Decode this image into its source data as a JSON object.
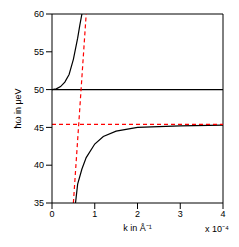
{
  "chart_data": {
    "type": "line",
    "xlabel": "k in Å⁻¹",
    "ylabel": "ħω in μeV",
    "annotation": "x 10⁻⁴",
    "xlim": [
      0,
      4
    ],
    "xticks": [
      0,
      1,
      2,
      3,
      4
    ],
    "ylim": [
      35,
      60
    ],
    "yticks": [
      35,
      40,
      45,
      50,
      55,
      60
    ],
    "grid": false,
    "series": [
      {
        "color": "#000000",
        "line_style": "solid",
        "x": [
          0,
          0.1,
          0.2,
          0.3,
          0.4,
          0.5,
          0.6,
          0.65,
          0.7
        ],
        "values": [
          50,
          50.1,
          50.4,
          51,
          52,
          54,
          56.8,
          58.5,
          60
        ]
      },
      {
        "color": "#000000",
        "line_style": "solid",
        "x": [
          0,
          4
        ],
        "values": [
          50,
          50
        ]
      },
      {
        "color": "#000000",
        "line_style": "solid",
        "x": [
          0.55,
          0.6,
          0.7,
          0.8,
          1.0,
          1.2,
          1.5,
          2,
          2.5,
          3,
          4
        ],
        "values": [
          35,
          37.5,
          39.5,
          41,
          42.8,
          43.8,
          44.5,
          45,
          45.1,
          45.2,
          45.3
        ]
      },
      {
        "color": "#ff0000",
        "line_style": "dashed",
        "x": [
          0.5,
          0.8
        ],
        "values": [
          35,
          60
        ]
      },
      {
        "color": "#ff0000",
        "line_style": "dashed",
        "x": [
          0,
          4
        ],
        "values": [
          45.4,
          45.4
        ]
      }
    ]
  }
}
